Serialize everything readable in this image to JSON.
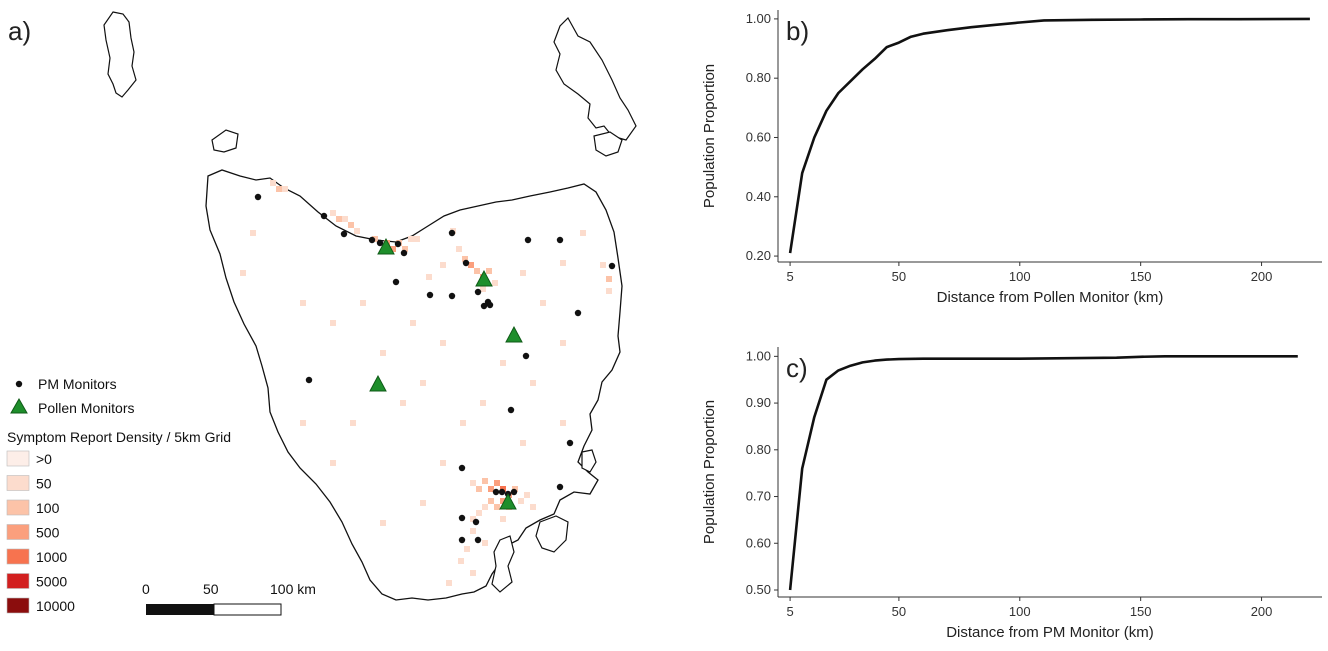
{
  "panel_labels": {
    "a": "a)",
    "b": "b)",
    "c": "c)"
  },
  "map": {
    "legend": {
      "pm_monitors": "PM Monitors",
      "pollen_monitors": "Pollen Monitors",
      "density_title": "Symptom Report Density / 5km Grid",
      "density_classes": [
        {
          "label": ">0",
          "color": "#fdeee8"
        },
        {
          "label": "50",
          "color": "#fcdccd"
        },
        {
          "label": "100",
          "color": "#fcc3a8"
        },
        {
          "label": "500",
          "color": "#fb9f7d"
        },
        {
          "label": "1000",
          "color": "#f7734f"
        },
        {
          "label": "5000",
          "color": "#d21f1f"
        },
        {
          "label": "10000",
          "color": "#8b0d0d"
        }
      ]
    },
    "scale_bar": {
      "labels": [
        "0",
        "50",
        "100 km"
      ]
    },
    "colors": {
      "pm_marker": "#111111",
      "pollen_marker": "#1e8e2b",
      "coast": "#111111"
    }
  },
  "chart_data": [
    {
      "id": "b",
      "type": "line",
      "xlabel": "Distance from Pollen Monitor (km)",
      "ylabel": "Population Proportion",
      "xticks": [
        5,
        50,
        100,
        150,
        200
      ],
      "yticks": [
        "0.20",
        "0.40",
        "0.60",
        "0.80",
        "1.00"
      ],
      "xlim": [
        0,
        225
      ],
      "ylim": [
        0.18,
        1.03
      ],
      "series": [
        {
          "x": [
            5,
            10,
            15,
            20,
            25,
            30,
            35,
            40,
            45,
            50,
            55,
            60,
            70,
            80,
            90,
            100,
            110,
            130,
            150,
            170,
            190,
            220
          ],
          "y": [
            0.21,
            0.48,
            0.6,
            0.69,
            0.75,
            0.79,
            0.83,
            0.865,
            0.905,
            0.92,
            0.94,
            0.95,
            0.962,
            0.972,
            0.98,
            0.988,
            0.995,
            0.997,
            0.998,
            0.999,
            0.999,
            1.0
          ]
        }
      ]
    },
    {
      "id": "c",
      "type": "line",
      "xlabel": "Distance from PM Monitor (km)",
      "ylabel": "Population Proportion",
      "xticks": [
        5,
        50,
        100,
        150,
        200
      ],
      "yticks": [
        "0.50",
        "0.60",
        "0.70",
        "0.80",
        "0.90",
        "1.00"
      ],
      "xlim": [
        0,
        225
      ],
      "ylim": [
        0.485,
        1.02
      ],
      "series": [
        {
          "x": [
            5,
            10,
            15,
            20,
            25,
            30,
            35,
            40,
            45,
            50,
            60,
            70,
            80,
            100,
            120,
            140,
            150,
            160,
            180,
            200,
            215
          ],
          "y": [
            0.5,
            0.76,
            0.87,
            0.95,
            0.97,
            0.98,
            0.987,
            0.991,
            0.993,
            0.994,
            0.995,
            0.995,
            0.995,
            0.995,
            0.996,
            0.997,
            0.999,
            1.0,
            1.0,
            1.0,
            1.0
          ]
        }
      ]
    }
  ]
}
